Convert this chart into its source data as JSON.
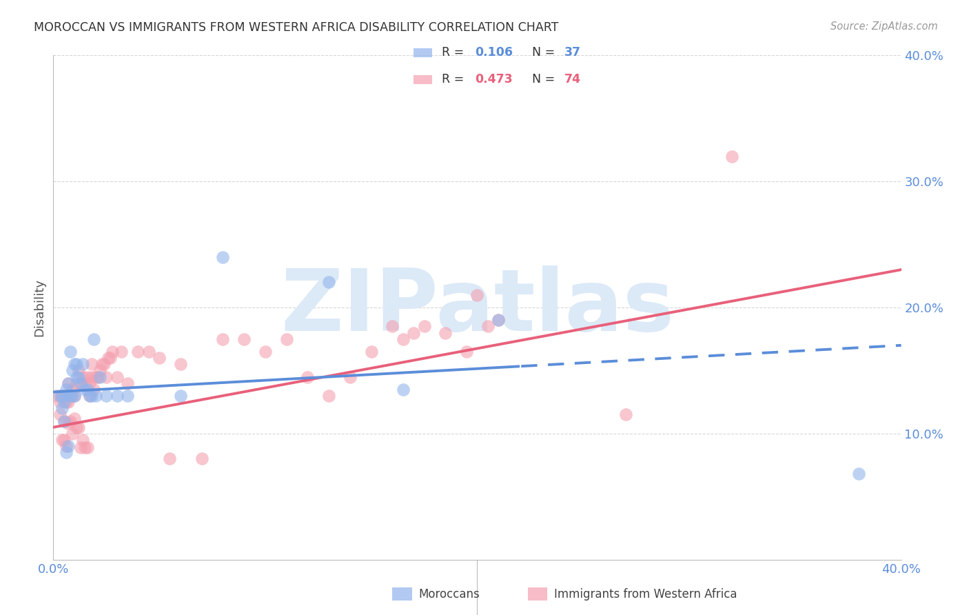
{
  "title": "MOROCCAN VS IMMIGRANTS FROM WESTERN AFRICA DISABILITY CORRELATION CHART",
  "source": "Source: ZipAtlas.com",
  "ylabel": "Disability",
  "x_min": 0.0,
  "x_max": 0.4,
  "y_min": 0.0,
  "y_max": 0.4,
  "y_ticks_right": [
    0.1,
    0.2,
    0.3,
    0.4
  ],
  "y_tick_labels_right": [
    "10.0%",
    "20.0%",
    "30.0%",
    "40.0%"
  ],
  "blue_R": 0.106,
  "blue_N": 37,
  "pink_R": 0.473,
  "pink_N": 74,
  "blue_scatter_color": "#92B4EC",
  "pink_scatter_color": "#F4A0B0",
  "blue_line_color": "#5B8DD9",
  "pink_line_color": "#E8607A",
  "axis_color": "#5B8DD9",
  "grid_color": "#CCCCCC",
  "title_color": "#333333",
  "watermark": "ZIPatlas",
  "watermark_color": "#DCE9F7",
  "legend_label_blue": "Moroccans",
  "legend_label_pink": "Immigrants from Western Africa",
  "blue_x": [
    0.003,
    0.004,
    0.004,
    0.005,
    0.005,
    0.006,
    0.006,
    0.006,
    0.007,
    0.007,
    0.008,
    0.008,
    0.009,
    0.009,
    0.01,
    0.01,
    0.011,
    0.011,
    0.012,
    0.013,
    0.014,
    0.015,
    0.016,
    0.017,
    0.018,
    0.019,
    0.02,
    0.022,
    0.025,
    0.03,
    0.035,
    0.06,
    0.08,
    0.13,
    0.165,
    0.21,
    0.38
  ],
  "blue_y": [
    0.13,
    0.13,
    0.12,
    0.125,
    0.11,
    0.13,
    0.135,
    0.085,
    0.14,
    0.09,
    0.13,
    0.165,
    0.13,
    0.15,
    0.13,
    0.155,
    0.145,
    0.155,
    0.145,
    0.14,
    0.155,
    0.135,
    0.135,
    0.13,
    0.13,
    0.175,
    0.13,
    0.145,
    0.13,
    0.13,
    0.13,
    0.13,
    0.24,
    0.22,
    0.135,
    0.19,
    0.068
  ],
  "pink_x": [
    0.002,
    0.003,
    0.003,
    0.004,
    0.004,
    0.005,
    0.005,
    0.005,
    0.006,
    0.006,
    0.006,
    0.007,
    0.007,
    0.007,
    0.008,
    0.008,
    0.009,
    0.009,
    0.01,
    0.01,
    0.011,
    0.011,
    0.012,
    0.012,
    0.013,
    0.013,
    0.014,
    0.014,
    0.015,
    0.015,
    0.016,
    0.016,
    0.017,
    0.017,
    0.018,
    0.018,
    0.019,
    0.02,
    0.021,
    0.022,
    0.023,
    0.024,
    0.025,
    0.026,
    0.027,
    0.028,
    0.03,
    0.032,
    0.035,
    0.04,
    0.045,
    0.05,
    0.055,
    0.06,
    0.07,
    0.08,
    0.09,
    0.1,
    0.11,
    0.12,
    0.13,
    0.14,
    0.15,
    0.16,
    0.165,
    0.17,
    0.175,
    0.185,
    0.195,
    0.2,
    0.205,
    0.21,
    0.27,
    0.32
  ],
  "pink_y": [
    0.13,
    0.125,
    0.115,
    0.13,
    0.095,
    0.13,
    0.11,
    0.095,
    0.13,
    0.125,
    0.09,
    0.125,
    0.14,
    0.108,
    0.13,
    0.11,
    0.135,
    0.1,
    0.13,
    0.112,
    0.14,
    0.105,
    0.15,
    0.105,
    0.14,
    0.089,
    0.145,
    0.095,
    0.14,
    0.089,
    0.145,
    0.089,
    0.13,
    0.14,
    0.145,
    0.155,
    0.135,
    0.145,
    0.145,
    0.15,
    0.155,
    0.155,
    0.145,
    0.16,
    0.16,
    0.165,
    0.145,
    0.165,
    0.14,
    0.165,
    0.165,
    0.16,
    0.08,
    0.155,
    0.08,
    0.175,
    0.175,
    0.165,
    0.175,
    0.145,
    0.13,
    0.145,
    0.165,
    0.185,
    0.175,
    0.18,
    0.185,
    0.18,
    0.165,
    0.21,
    0.185,
    0.19,
    0.115,
    0.32
  ],
  "pink_outlier_x": [
    0.34
  ],
  "pink_outlier_y": [
    0.32
  ],
  "blue_line_start_x": 0.0,
  "blue_line_end_x": 0.4,
  "blue_line_solid_end": 0.22,
  "pink_line_start_x": 0.0,
  "pink_line_end_x": 0.4,
  "blue_line_y_at_0": 0.133,
  "blue_line_y_at_04": 0.17,
  "pink_line_y_at_0": 0.105,
  "pink_line_y_at_04": 0.23
}
